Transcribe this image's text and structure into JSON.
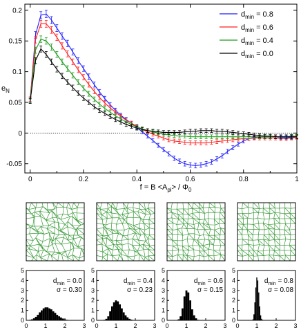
{
  "chart_data": [
    {
      "type": "line",
      "xlabel": "f = B <A",
      "xlabel_sub1": "pl",
      "xlabel_mid": "> / Φ",
      "xlabel_sub2": "0",
      "ylabel": "e",
      "ylabel_sub": "N",
      "xlim": [
        -0.02,
        1.0
      ],
      "ylim": [
        -0.065,
        0.21
      ],
      "xticks": [
        0,
        0.2,
        0.4,
        0.6,
        0.8,
        1
      ],
      "xtick_labels": [
        "0",
        "0.2",
        "0.4",
        "0.6",
        "0.8",
        "1"
      ],
      "yticks": [
        -0.05,
        0,
        0.05,
        0.1,
        0.15,
        0.2
      ],
      "ytick_labels": [
        "-0.05",
        "0",
        "0.05",
        "0.1",
        "0.15",
        "0.2"
      ],
      "reference_line": {
        "y": 0,
        "style": "dotted"
      },
      "legend_position": "top-right",
      "x": [
        0,
        0.02,
        0.04,
        0.06,
        0.08,
        0.1,
        0.12,
        0.14,
        0.16,
        0.18,
        0.2,
        0.22,
        0.24,
        0.26,
        0.28,
        0.3,
        0.32,
        0.34,
        0.36,
        0.38,
        0.4,
        0.42,
        0.44,
        0.46,
        0.48,
        0.5,
        0.52,
        0.54,
        0.56,
        0.58,
        0.6,
        0.62,
        0.64,
        0.66,
        0.68,
        0.7,
        0.72,
        0.74,
        0.76,
        0.78,
        0.8,
        0.82,
        0.84,
        0.86,
        0.88,
        0.9,
        0.92,
        0.94,
        0.96,
        0.98,
        1.0
      ],
      "series": [
        {
          "name": "d",
          "name_sub": "min",
          "name_val": " = 0.8",
          "color": "#1f1fff",
          "values": [
            0.055,
            0.16,
            0.192,
            0.194,
            0.184,
            0.171,
            0.158,
            0.146,
            0.132,
            0.118,
            0.105,
            0.092,
            0.079,
            0.067,
            0.056,
            0.046,
            0.037,
            0.029,
            0.022,
            0.016,
            0.009,
            0.002,
            -0.005,
            -0.012,
            -0.02,
            -0.027,
            -0.034,
            -0.041,
            -0.046,
            -0.05,
            -0.052,
            -0.053,
            -0.052,
            -0.05,
            -0.047,
            -0.042,
            -0.037,
            -0.03,
            -0.024,
            -0.018,
            -0.013,
            -0.009,
            -0.007,
            -0.006,
            -0.006,
            -0.006,
            -0.006,
            -0.007,
            -0.007,
            -0.007,
            -0.006
          ]
        },
        {
          "name": "d",
          "name_sub": "min",
          "name_val": " = 0.6",
          "color": "#ff1f1f",
          "values": [
            0.055,
            0.152,
            0.178,
            0.178,
            0.168,
            0.156,
            0.142,
            0.129,
            0.116,
            0.103,
            0.091,
            0.079,
            0.068,
            0.058,
            0.049,
            0.041,
            0.034,
            0.027,
            0.021,
            0.016,
            0.011,
            0.006,
            0.002,
            -0.002,
            -0.005,
            -0.008,
            -0.011,
            -0.013,
            -0.014,
            -0.015,
            -0.016,
            -0.016,
            -0.016,
            -0.016,
            -0.015,
            -0.014,
            -0.013,
            -0.012,
            -0.011,
            -0.01,
            -0.009,
            -0.009,
            -0.008,
            -0.008,
            -0.008,
            -0.008,
            -0.008,
            -0.009,
            -0.009,
            -0.008,
            -0.007
          ]
        },
        {
          "name": "d",
          "name_sub": "min",
          "name_val": " = 0.4",
          "color": "#1a9a1a",
          "values": [
            0.053,
            0.135,
            0.153,
            0.15,
            0.14,
            0.128,
            0.116,
            0.105,
            0.094,
            0.083,
            0.073,
            0.064,
            0.055,
            0.047,
            0.04,
            0.034,
            0.028,
            0.023,
            0.018,
            0.014,
            0.01,
            0.007,
            0.004,
            0.002,
            0.0,
            -0.002,
            -0.003,
            -0.004,
            -0.005,
            -0.005,
            -0.006,
            -0.006,
            -0.006,
            -0.006,
            -0.006,
            -0.006,
            -0.006,
            -0.006,
            -0.006,
            -0.006,
            -0.006,
            -0.006,
            -0.006,
            -0.006,
            -0.006,
            -0.006,
            -0.006,
            -0.006,
            -0.006,
            -0.005,
            -0.005
          ]
        },
        {
          "name": "d",
          "name_sub": "min",
          "name_val": " = 0.0",
          "color": "#000000",
          "values": [
            0.052,
            0.118,
            0.137,
            0.128,
            0.116,
            0.104,
            0.093,
            0.083,
            0.074,
            0.065,
            0.057,
            0.05,
            0.043,
            0.037,
            0.032,
            0.027,
            0.022,
            0.018,
            0.014,
            0.011,
            0.008,
            0.006,
            0.004,
            0.003,
            0.002,
            0.001,
            0.001,
            0.001,
            0.001,
            0.002,
            0.003,
            0.003,
            0.004,
            0.004,
            0.004,
            0.003,
            0.003,
            0.002,
            0.001,
            0.0,
            -0.001,
            -0.002,
            -0.003,
            -0.004,
            -0.005,
            -0.005,
            -0.006,
            -0.006,
            -0.006,
            -0.006,
            -0.006
          ]
        }
      ]
    },
    {
      "type": "bar",
      "name": "histogram-dmin-0.0",
      "label_d": "d",
      "label_sub": "min",
      "label_val": " = 0.0",
      "label_sigma": "σ = 0.30",
      "xlim": [
        0,
        3
      ],
      "ylim": [
        0,
        5
      ],
      "xtick_labels": [
        "0",
        "1",
        "2",
        "3"
      ],
      "ytick_labels": [
        "0",
        "1",
        "2",
        "3",
        "4",
        "5"
      ],
      "x": [
        0.2,
        0.3,
        0.4,
        0.5,
        0.6,
        0.7,
        0.8,
        0.9,
        1.0,
        1.1,
        1.2,
        1.3,
        1.4,
        1.5,
        1.6,
        1.7,
        1.8,
        1.9,
        2.0,
        2.1,
        2.2
      ],
      "values": [
        0.05,
        0.1,
        0.2,
        0.35,
        0.55,
        0.8,
        1.0,
        1.2,
        1.3,
        1.3,
        1.2,
        1.1,
        0.9,
        0.75,
        0.55,
        0.4,
        0.28,
        0.18,
        0.1,
        0.05,
        0.02
      ]
    },
    {
      "type": "bar",
      "name": "histogram-dmin-0.4",
      "label_d": "d",
      "label_sub": "min",
      "label_val": " = 0.4",
      "label_sigma": "σ = 0.23",
      "xlim": [
        0,
        3
      ],
      "ylim": [
        0,
        5
      ],
      "xtick_labels": [
        "0",
        "1",
        "2",
        "3"
      ],
      "ytick_labels": [
        "0",
        "1",
        "2",
        "3",
        "4",
        "5"
      ],
      "x": [
        0.4,
        0.5,
        0.6,
        0.7,
        0.8,
        0.9,
        1.0,
        1.1,
        1.2,
        1.3,
        1.4,
        1.5,
        1.6,
        1.7,
        1.8,
        1.9
      ],
      "values": [
        0.05,
        0.15,
        0.4,
        0.9,
        1.4,
        1.8,
        2.0,
        1.9,
        1.6,
        1.2,
        0.8,
        0.5,
        0.3,
        0.15,
        0.07,
        0.03
      ]
    },
    {
      "type": "bar",
      "name": "histogram-dmin-0.6",
      "label_d": "d",
      "label_sub": "min",
      "label_val": " = 0.6",
      "label_sigma": "σ = 0.15",
      "xlim": [
        0,
        3
      ],
      "ylim": [
        0,
        5
      ],
      "xtick_labels": [
        "0",
        "1",
        "2",
        "3"
      ],
      "ytick_labels": [
        "0",
        "1",
        "2",
        "3",
        "4",
        "5"
      ],
      "x": [
        0.6,
        0.7,
        0.8,
        0.9,
        1.0,
        1.1,
        1.2,
        1.3,
        1.4,
        1.5,
        1.6
      ],
      "values": [
        0.1,
        0.4,
        1.2,
        2.4,
        3.0,
        2.8,
        2.0,
        1.1,
        0.5,
        0.2,
        0.05
      ]
    },
    {
      "type": "bar",
      "name": "histogram-dmin-0.8",
      "label_d": "d",
      "label_sub": "min",
      "label_val": " = 0.8",
      "label_sigma": "σ = 0.08",
      "xlim": [
        0,
        3
      ],
      "ylim": [
        0,
        5
      ],
      "xtick_labels": [
        "0",
        "1",
        "2",
        "3"
      ],
      "ytick_labels": [
        "0",
        "1",
        "2",
        "3",
        "4",
        "5"
      ],
      "x": [
        0.8,
        0.85,
        0.9,
        0.95,
        1.0,
        1.05,
        1.1,
        1.15,
        1.2,
        1.25,
        1.3
      ],
      "values": [
        0.1,
        0.6,
        1.8,
        3.3,
        4.3,
        4.0,
        2.8,
        1.4,
        0.5,
        0.15,
        0.05
      ]
    }
  ],
  "tessellation_panels": [
    {
      "name": "tessellation-dmin-0.0",
      "dmin": 0.0,
      "line_color": "#3a9a3a"
    },
    {
      "name": "tessellation-dmin-0.4",
      "dmin": 0.4,
      "line_color": "#3a9a3a"
    },
    {
      "name": "tessellation-dmin-0.6",
      "dmin": 0.6,
      "line_color": "#3a9a3a"
    },
    {
      "name": "tessellation-dmin-0.8",
      "dmin": 0.8,
      "line_color": "#3a9a3a"
    }
  ]
}
